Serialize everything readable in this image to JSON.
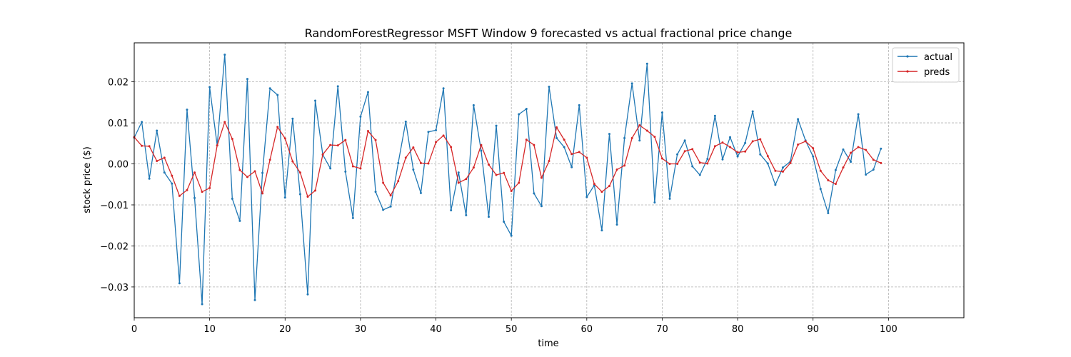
{
  "chart_data": {
    "type": "line",
    "title": "RandomForestRegressor MSFT Window 9 forecasted vs actual fractional price change",
    "xlabel": "time",
    "ylabel": "stock price ($)",
    "xlim": [
      0,
      110
    ],
    "ylim": [
      -0.0375,
      0.0295
    ],
    "xticks": [
      0,
      10,
      20,
      30,
      40,
      50,
      60,
      70,
      80,
      90,
      100
    ],
    "yticks": [
      -0.03,
      -0.02,
      -0.01,
      0.0,
      0.01,
      0.02
    ],
    "ytick_labels": [
      "−0.03",
      "−0.02",
      "−0.01",
      "0.00",
      "0.01",
      "0.02"
    ],
    "grid": true,
    "legend_position": "top-right",
    "series": [
      {
        "name": "actual",
        "color": "#1f77b4",
        "values": [
          0.0064,
          0.0102,
          -0.0036,
          0.0081,
          -0.0021,
          -0.0048,
          -0.0291,
          0.0132,
          -0.0083,
          -0.0342,
          0.0187,
          0.0045,
          0.0266,
          -0.0085,
          -0.0139,
          0.0207,
          -0.0332,
          -0.0022,
          0.0184,
          0.0168,
          -0.0082,
          0.011,
          -0.0074,
          -0.0318,
          0.0154,
          0.0022,
          -0.0011,
          0.0189,
          -0.0019,
          -0.0132,
          0.0115,
          0.0175,
          -0.0068,
          -0.0112,
          -0.0104,
          0.0002,
          0.0103,
          -0.0014,
          -0.0071,
          0.0078,
          0.0082,
          0.0184,
          -0.0113,
          -0.0021,
          -0.0125,
          0.0143,
          0.0032,
          -0.0129,
          0.0093,
          -0.0141,
          -0.0175,
          0.0121,
          0.0134,
          -0.0072,
          -0.0103,
          0.0188,
          0.0063,
          0.0041,
          -0.0008,
          0.0143,
          -0.0081,
          -0.0052,
          -0.0162,
          0.0073,
          -0.0148,
          0.0063,
          0.0196,
          0.0057,
          0.0244,
          -0.0094,
          0.0125,
          -0.0085,
          0.0023,
          0.0057,
          -0.0006,
          -0.0027,
          0.0012,
          0.0117,
          0.0011,
          0.0065,
          0.0018,
          0.0051,
          0.0128,
          0.0023,
          0.0001,
          -0.0051,
          -0.0009,
          0.0006,
          0.0109,
          0.0057,
          0.0018,
          -0.0061,
          -0.012,
          -0.0015,
          0.0035,
          0.0005,
          0.0121,
          -0.0026,
          -0.0014,
          0.0037
        ]
      },
      {
        "name": "preds",
        "color": "#d62728",
        "values": [
          0.0065,
          0.0044,
          0.0043,
          0.0007,
          0.0015,
          -0.0029,
          -0.0078,
          -0.0064,
          -0.0021,
          -0.0068,
          -0.0059,
          0.0045,
          0.0102,
          0.0061,
          -0.0015,
          -0.0032,
          -0.0018,
          -0.0072,
          0.001,
          0.009,
          0.0062,
          0.0006,
          -0.0021,
          -0.008,
          -0.0065,
          0.0023,
          0.0046,
          0.0045,
          0.0058,
          -0.0006,
          -0.0011,
          0.008,
          0.0058,
          -0.0046,
          -0.0077,
          -0.0042,
          0.0015,
          0.004,
          0.0002,
          0.0001,
          0.0053,
          0.0069,
          0.0041,
          -0.0046,
          -0.0037,
          -0.0009,
          0.0046,
          -0.0002,
          -0.0027,
          -0.0022,
          -0.0066,
          -0.0046,
          0.0059,
          0.0046,
          -0.0034,
          0.0007,
          0.0089,
          0.0059,
          0.0024,
          0.0029,
          0.0015,
          -0.0049,
          -0.0068,
          -0.0054,
          -0.0014,
          -0.0004,
          0.0063,
          0.0094,
          0.0081,
          0.0066,
          0.0013,
          0.0,
          0.0,
          0.0031,
          0.0036,
          0.0003,
          0.0001,
          0.0043,
          0.0052,
          0.0041,
          0.0028,
          0.003,
          0.0055,
          0.006,
          0.0019,
          -0.0017,
          -0.0019,
          0.0002,
          0.0047,
          0.0055,
          0.0038,
          -0.0017,
          -0.004,
          -0.0049,
          -0.0009,
          0.0027,
          0.0041,
          0.0034,
          0.001,
          0.0002
        ]
      }
    ]
  }
}
